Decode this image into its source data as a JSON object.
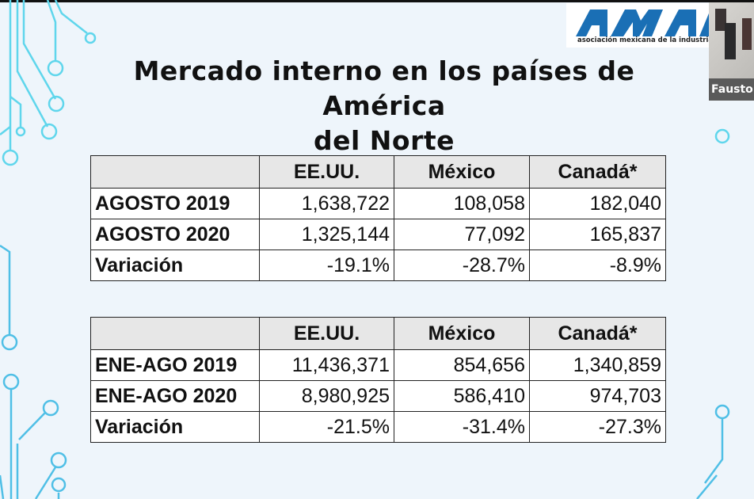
{
  "slide": {
    "title_line1": "Mercado interno en los países de América",
    "title_line2": "del Norte",
    "logo": {
      "text": "AMIA",
      "tagline": "asociación mexicana de la industria automotriz",
      "color": "#1a6fb5"
    }
  },
  "participant": {
    "name": "Fausto"
  },
  "tables": [
    {
      "headers": [
        "",
        "EE.UU.",
        "México",
        "Canadá*"
      ],
      "rows": [
        [
          "AGOSTO 2019",
          "1,638,722",
          "108,058",
          "182,040"
        ],
        [
          "AGOSTO 2020",
          "1,325,144",
          "77,092",
          "165,837"
        ],
        [
          "Variación",
          "-19.1%",
          "-28.7%",
          "-8.9%"
        ]
      ]
    },
    {
      "headers": [
        "",
        "EE.UU.",
        "México",
        "Canadá*"
      ],
      "rows": [
        [
          "ENE-AGO 2019",
          "11,436,371",
          "854,656",
          "1,340,859"
        ],
        [
          "ENE-AGO 2020",
          "8,980,925",
          "586,410",
          "974,703"
        ],
        [
          "Variación",
          "-21.5%",
          "-31.4%",
          "-27.3%"
        ]
      ]
    }
  ]
}
